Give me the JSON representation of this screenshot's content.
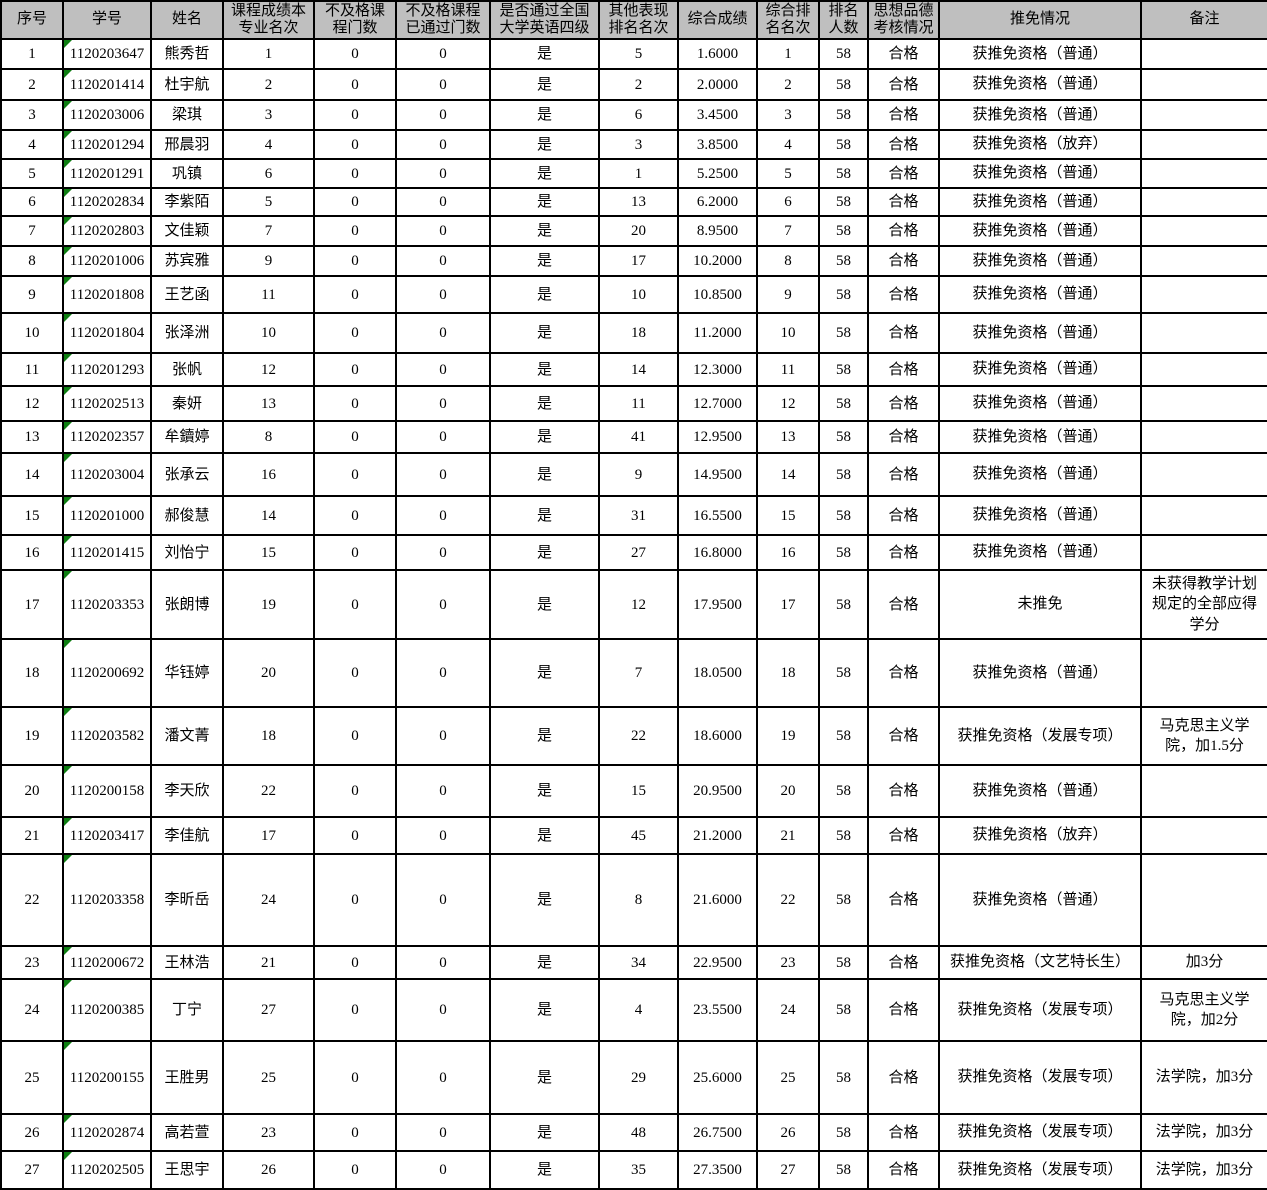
{
  "table": {
    "colors": {
      "header_bg": "#bfbfbf",
      "border": "#000000",
      "error_flag_green": "#0e7e12",
      "body_bg": "#ffffff"
    },
    "columns": [
      "序号",
      "学号",
      "姓名",
      "课程成绩本\n专业名次",
      "不及格课\n程门数",
      "不及格课程\n已通过门数",
      "是否通过全国\n大学英语四级",
      "其他表现\n排名名次",
      "综合成绩",
      "综合排\n名名次",
      "排名\n人数",
      "思想品德\n考核情况",
      "推免情况",
      "备注"
    ],
    "rows": [
      {
        "seq": "1",
        "student_id": "1120203647",
        "name": "熊秀哲",
        "course_rank": "1",
        "failed_count": "0",
        "failed_passed_count": "0",
        "cet4": "是",
        "other_rank": "5",
        "composite_score": "1.6000",
        "composite_rank": "1",
        "cohort_size": "58",
        "moral_assessment": "合格",
        "exemption_status": "获推免资格（普通）",
        "remark": ""
      },
      {
        "seq": "2",
        "student_id": "1120201414",
        "name": "杜宇航",
        "course_rank": "2",
        "failed_count": "0",
        "failed_passed_count": "0",
        "cet4": "是",
        "other_rank": "2",
        "composite_score": "2.0000",
        "composite_rank": "2",
        "cohort_size": "58",
        "moral_assessment": "合格",
        "exemption_status": "获推免资格（普通）",
        "remark": ""
      },
      {
        "seq": "3",
        "student_id": "1120203006",
        "name": "梁琪",
        "course_rank": "3",
        "failed_count": "0",
        "failed_passed_count": "0",
        "cet4": "是",
        "other_rank": "6",
        "composite_score": "3.4500",
        "composite_rank": "3",
        "cohort_size": "58",
        "moral_assessment": "合格",
        "exemption_status": "获推免资格（普通）",
        "remark": ""
      },
      {
        "seq": "4",
        "student_id": "1120201294",
        "name": "邢晨羽",
        "course_rank": "4",
        "failed_count": "0",
        "failed_passed_count": "0",
        "cet4": "是",
        "other_rank": "3",
        "composite_score": "3.8500",
        "composite_rank": "4",
        "cohort_size": "58",
        "moral_assessment": "合格",
        "exemption_status": "获推免资格（放弃）",
        "remark": ""
      },
      {
        "seq": "5",
        "student_id": "1120201291",
        "name": "巩镇",
        "course_rank": "6",
        "failed_count": "0",
        "failed_passed_count": "0",
        "cet4": "是",
        "other_rank": "1",
        "composite_score": "5.2500",
        "composite_rank": "5",
        "cohort_size": "58",
        "moral_assessment": "合格",
        "exemption_status": "获推免资格（普通）",
        "remark": ""
      },
      {
        "seq": "6",
        "student_id": "1120202834",
        "name": "李紫陌",
        "course_rank": "5",
        "failed_count": "0",
        "failed_passed_count": "0",
        "cet4": "是",
        "other_rank": "13",
        "composite_score": "6.2000",
        "composite_rank": "6",
        "cohort_size": "58",
        "moral_assessment": "合格",
        "exemption_status": "获推免资格（普通）",
        "remark": ""
      },
      {
        "seq": "7",
        "student_id": "1120202803",
        "name": "文佳颖",
        "course_rank": "7",
        "failed_count": "0",
        "failed_passed_count": "0",
        "cet4": "是",
        "other_rank": "20",
        "composite_score": "8.9500",
        "composite_rank": "7",
        "cohort_size": "58",
        "moral_assessment": "合格",
        "exemption_status": "获推免资格（普通）",
        "remark": ""
      },
      {
        "seq": "8",
        "student_id": "1120201006",
        "name": "苏宾雅",
        "course_rank": "9",
        "failed_count": "0",
        "failed_passed_count": "0",
        "cet4": "是",
        "other_rank": "17",
        "composite_score": "10.2000",
        "composite_rank": "8",
        "cohort_size": "58",
        "moral_assessment": "合格",
        "exemption_status": "获推免资格（普通）",
        "remark": ""
      },
      {
        "seq": "9",
        "student_id": "1120201808",
        "name": "王艺函",
        "course_rank": "11",
        "failed_count": "0",
        "failed_passed_count": "0",
        "cet4": "是",
        "other_rank": "10",
        "composite_score": "10.8500",
        "composite_rank": "9",
        "cohort_size": "58",
        "moral_assessment": "合格",
        "exemption_status": "获推免资格（普通）",
        "remark": ""
      },
      {
        "seq": "10",
        "student_id": "1120201804",
        "name": "张泽洲",
        "course_rank": "10",
        "failed_count": "0",
        "failed_passed_count": "0",
        "cet4": "是",
        "other_rank": "18",
        "composite_score": "11.2000",
        "composite_rank": "10",
        "cohort_size": "58",
        "moral_assessment": "合格",
        "exemption_status": "获推免资格（普通）",
        "remark": ""
      },
      {
        "seq": "11",
        "student_id": "1120201293",
        "name": "张帆",
        "course_rank": "12",
        "failed_count": "0",
        "failed_passed_count": "0",
        "cet4": "是",
        "other_rank": "14",
        "composite_score": "12.3000",
        "composite_rank": "11",
        "cohort_size": "58",
        "moral_assessment": "合格",
        "exemption_status": "获推免资格（普通）",
        "remark": ""
      },
      {
        "seq": "12",
        "student_id": "1120202513",
        "name": "秦妍",
        "course_rank": "13",
        "failed_count": "0",
        "failed_passed_count": "0",
        "cet4": "是",
        "other_rank": "11",
        "composite_score": "12.7000",
        "composite_rank": "12",
        "cohort_size": "58",
        "moral_assessment": "合格",
        "exemption_status": "获推免资格（普通）",
        "remark": ""
      },
      {
        "seq": "13",
        "student_id": "1120202357",
        "name": "牟鑟婷",
        "course_rank": "8",
        "failed_count": "0",
        "failed_passed_count": "0",
        "cet4": "是",
        "other_rank": "41",
        "composite_score": "12.9500",
        "composite_rank": "13",
        "cohort_size": "58",
        "moral_assessment": "合格",
        "exemption_status": "获推免资格（普通）",
        "remark": ""
      },
      {
        "seq": "14",
        "student_id": "1120203004",
        "name": "张承云",
        "course_rank": "16",
        "failed_count": "0",
        "failed_passed_count": "0",
        "cet4": "是",
        "other_rank": "9",
        "composite_score": "14.9500",
        "composite_rank": "14",
        "cohort_size": "58",
        "moral_assessment": "合格",
        "exemption_status": "获推免资格（普通）",
        "remark": ""
      },
      {
        "seq": "15",
        "student_id": "1120201000",
        "name": "郝俊慧",
        "course_rank": "14",
        "failed_count": "0",
        "failed_passed_count": "0",
        "cet4": "是",
        "other_rank": "31",
        "composite_score": "16.5500",
        "composite_rank": "15",
        "cohort_size": "58",
        "moral_assessment": "合格",
        "exemption_status": "获推免资格（普通）",
        "remark": ""
      },
      {
        "seq": "16",
        "student_id": "1120201415",
        "name": "刘怡宁",
        "course_rank": "15",
        "failed_count": "0",
        "failed_passed_count": "0",
        "cet4": "是",
        "other_rank": "27",
        "composite_score": "16.8000",
        "composite_rank": "16",
        "cohort_size": "58",
        "moral_assessment": "合格",
        "exemption_status": "获推免资格（普通）",
        "remark": ""
      },
      {
        "seq": "17",
        "student_id": "1120203353",
        "name": "张朗博",
        "course_rank": "19",
        "failed_count": "0",
        "failed_passed_count": "0",
        "cet4": "是",
        "other_rank": "12",
        "composite_score": "17.9500",
        "composite_rank": "17",
        "cohort_size": "58",
        "moral_assessment": "合格",
        "exemption_status": "未推免",
        "remark": "未获得教学计划\n规定的全部应得\n学分"
      },
      {
        "seq": "18",
        "student_id": "1120200692",
        "name": "华钰婷",
        "course_rank": "20",
        "failed_count": "0",
        "failed_passed_count": "0",
        "cet4": "是",
        "other_rank": "7",
        "composite_score": "18.0500",
        "composite_rank": "18",
        "cohort_size": "58",
        "moral_assessment": "合格",
        "exemption_status": "获推免资格（普通）",
        "remark": ""
      },
      {
        "seq": "19",
        "student_id": "1120203582",
        "name": "潘文菁",
        "course_rank": "18",
        "failed_count": "0",
        "failed_passed_count": "0",
        "cet4": "是",
        "other_rank": "22",
        "composite_score": "18.6000",
        "composite_rank": "19",
        "cohort_size": "58",
        "moral_assessment": "合格",
        "exemption_status": "获推免资格（发展专项）",
        "remark": "马克思主义学\n院，加1.5分"
      },
      {
        "seq": "20",
        "student_id": "1120200158",
        "name": "李天欣",
        "course_rank": "22",
        "failed_count": "0",
        "failed_passed_count": "0",
        "cet4": "是",
        "other_rank": "15",
        "composite_score": "20.9500",
        "composite_rank": "20",
        "cohort_size": "58",
        "moral_assessment": "合格",
        "exemption_status": "获推免资格（普通）",
        "remark": ""
      },
      {
        "seq": "21",
        "student_id": "1120203417",
        "name": "李佳航",
        "course_rank": "17",
        "failed_count": "0",
        "failed_passed_count": "0",
        "cet4": "是",
        "other_rank": "45",
        "composite_score": "21.2000",
        "composite_rank": "21",
        "cohort_size": "58",
        "moral_assessment": "合格",
        "exemption_status": "获推免资格（放弃）",
        "remark": ""
      },
      {
        "seq": "22",
        "student_id": "1120203358",
        "name": "李昕岳",
        "course_rank": "24",
        "failed_count": "0",
        "failed_passed_count": "0",
        "cet4": "是",
        "other_rank": "8",
        "composite_score": "21.6000",
        "composite_rank": "22",
        "cohort_size": "58",
        "moral_assessment": "合格",
        "exemption_status": "获推免资格（普通）",
        "remark": ""
      },
      {
        "seq": "23",
        "student_id": "1120200672",
        "name": "王林浩",
        "course_rank": "21",
        "failed_count": "0",
        "failed_passed_count": "0",
        "cet4": "是",
        "other_rank": "34",
        "composite_score": "22.9500",
        "composite_rank": "23",
        "cohort_size": "58",
        "moral_assessment": "合格",
        "exemption_status": "获推免资格（文艺特长生）",
        "remark": "加3分"
      },
      {
        "seq": "24",
        "student_id": "1120200385",
        "name": "丁宁",
        "course_rank": "27",
        "failed_count": "0",
        "failed_passed_count": "0",
        "cet4": "是",
        "other_rank": "4",
        "composite_score": "23.5500",
        "composite_rank": "24",
        "cohort_size": "58",
        "moral_assessment": "合格",
        "exemption_status": "获推免资格（发展专项）",
        "remark": "马克思主义学\n院，加2分"
      },
      {
        "seq": "25",
        "student_id": "1120200155",
        "name": "王胜男",
        "course_rank": "25",
        "failed_count": "0",
        "failed_passed_count": "0",
        "cet4": "是",
        "other_rank": "29",
        "composite_score": "25.6000",
        "composite_rank": "25",
        "cohort_size": "58",
        "moral_assessment": "合格",
        "exemption_status": "获推免资格（发展专项）",
        "remark": "法学院，加3分"
      },
      {
        "seq": "26",
        "student_id": "1120202874",
        "name": "高若萱",
        "course_rank": "23",
        "failed_count": "0",
        "failed_passed_count": "0",
        "cet4": "是",
        "other_rank": "48",
        "composite_score": "26.7500",
        "composite_rank": "26",
        "cohort_size": "58",
        "moral_assessment": "合格",
        "exemption_status": "获推免资格（发展专项）",
        "remark": "法学院，加3分"
      },
      {
        "seq": "27",
        "student_id": "1120202505",
        "name": "王思宇",
        "course_rank": "26",
        "failed_count": "0",
        "failed_passed_count": "0",
        "cet4": "是",
        "other_rank": "35",
        "composite_score": "27.3500",
        "composite_rank": "27",
        "cohort_size": "58",
        "moral_assessment": "合格",
        "exemption_status": "获推免资格（发展专项）",
        "remark": "法学院，加3分"
      }
    ]
  }
}
